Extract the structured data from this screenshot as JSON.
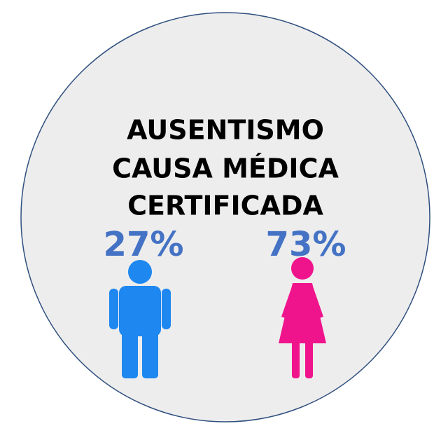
{
  "title": [
    "AUSENTISMO",
    "CAUSA MÉDICA",
    "CERTIFICADA"
  ],
  "items": [
    {
      "label": "27%"
    },
    {
      "label": "73%"
    }
  ]
}
